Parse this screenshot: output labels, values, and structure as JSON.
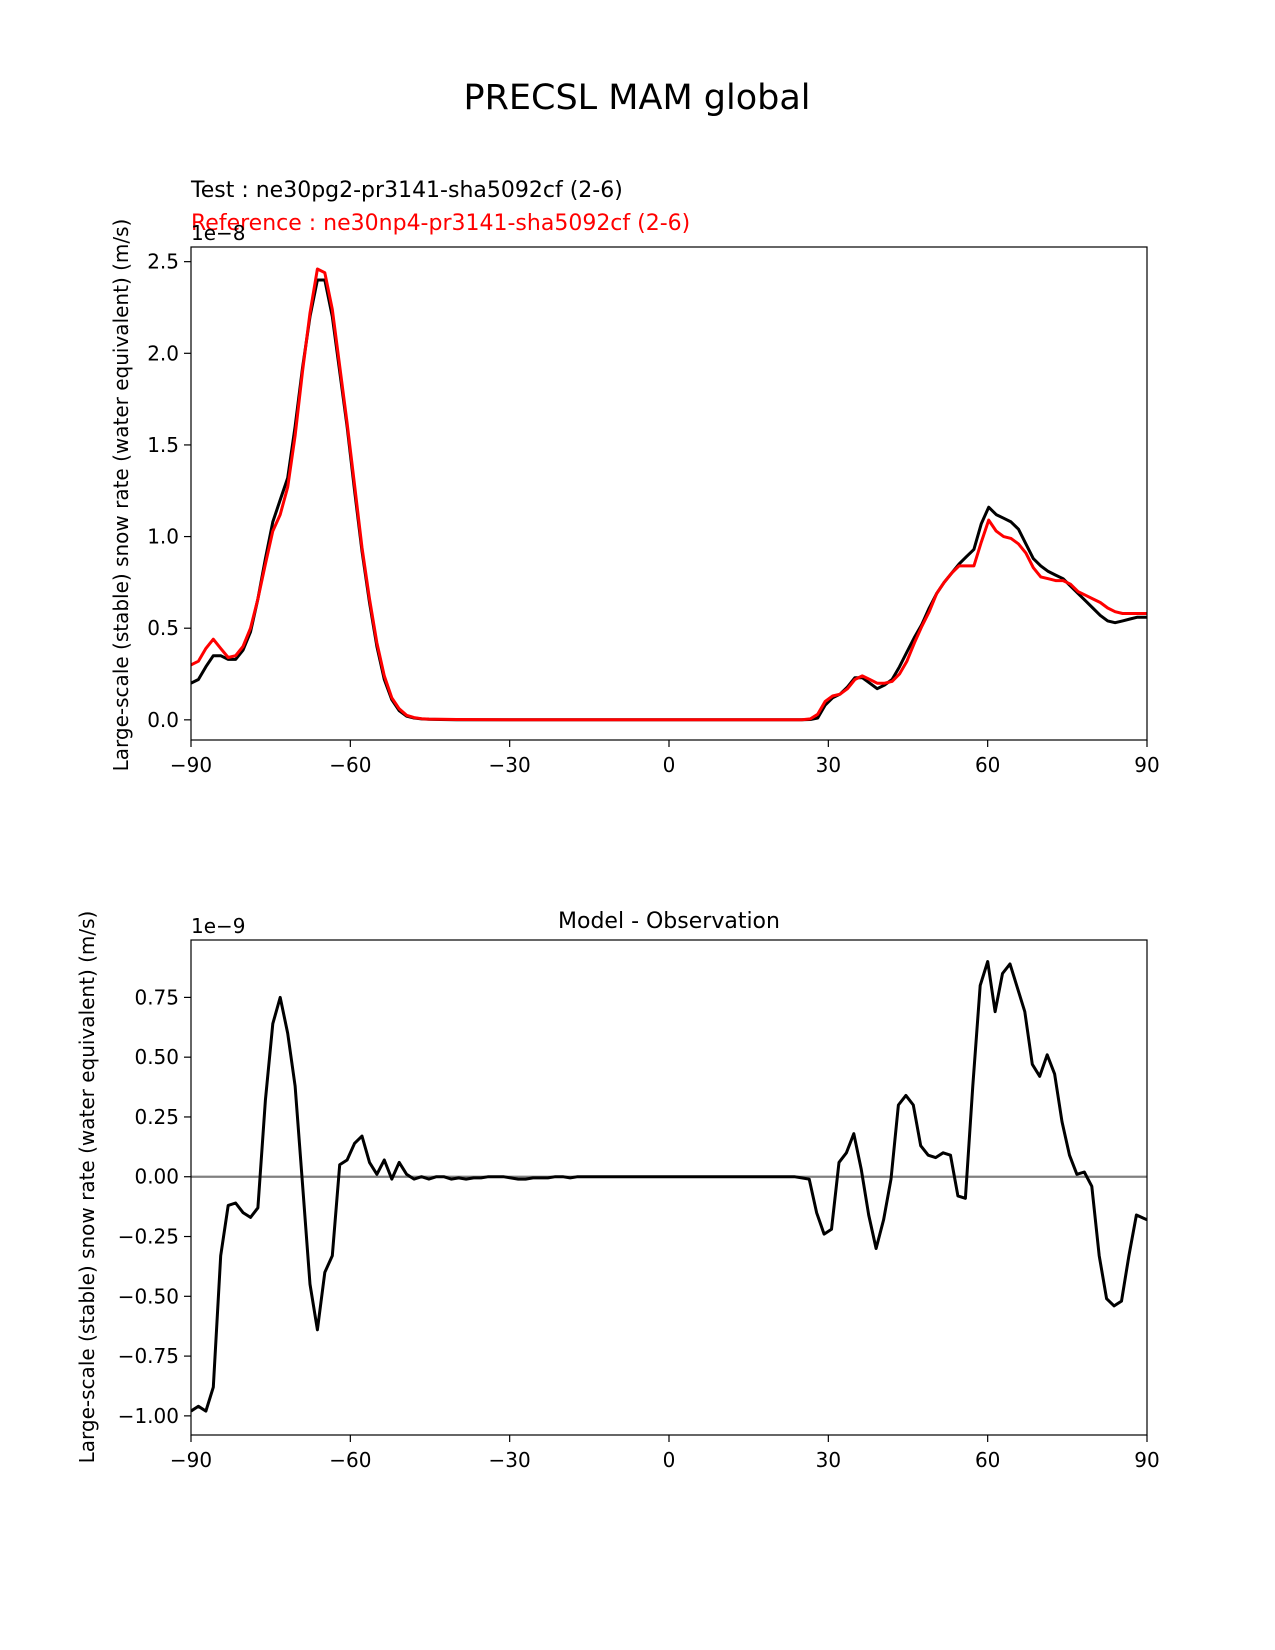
{
  "figure": {
    "suptitle": "PRECSL MAM global"
  },
  "chart_data": [
    {
      "type": "line",
      "title": "",
      "test_label": "Test : ne30pg2-pr3141-sha5092cf (2-6)",
      "reference_label": "Reference : ne30np4-pr3141-sha5092cf (2-6)",
      "ylabel": "Large-scale (stable) snow rate (water equivalent) (m/s)",
      "xlabel": "",
      "offset_text": "1e−8",
      "xlim": [
        -90,
        90
      ],
      "ylim": [
        -0.11,
        2.58
      ],
      "xticks": [
        -90,
        -60,
        -30,
        0,
        30,
        60,
        90
      ],
      "xtick_labels": [
        "−90",
        "−60",
        "−30",
        "0",
        "30",
        "60",
        "90"
      ],
      "yticks": [
        0.0,
        0.5,
        1.0,
        1.5,
        2.0,
        2.5
      ],
      "ytick_labels": [
        "0.0",
        "0.5",
        "1.0",
        "1.5",
        "2.0",
        "2.5"
      ],
      "grid": false,
      "series": [
        {
          "name": "Test : ne30pg2-pr3141-sha5092cf (2-6)",
          "color": "#000000",
          "x": [
            -90,
            -88.6,
            -87.2,
            -85.8,
            -84.4,
            -83.0,
            -81.6,
            -80.2,
            -78.8,
            -77.4,
            -76.0,
            -74.6,
            -73.2,
            -71.8,
            -70.4,
            -69.0,
            -67.6,
            -66.2,
            -64.8,
            -63.4,
            -62.0,
            -60.6,
            -59.2,
            -57.8,
            -56.4,
            -55.0,
            -53.6,
            -52.2,
            -50.8,
            -49.4,
            -48.0,
            -46.6,
            -45.2,
            -43.0,
            -40,
            -30,
            -20,
            -10,
            0,
            10,
            20,
            25,
            26.6,
            28.0,
            29.4,
            30.8,
            32.2,
            33.6,
            35.0,
            36.4,
            37.8,
            39.2,
            40.6,
            42.0,
            43.4,
            44.8,
            46.2,
            47.6,
            49.0,
            50.4,
            51.8,
            53.2,
            54.6,
            56.0,
            57.4,
            58.8,
            60.2,
            61.6,
            63.0,
            64.4,
            65.8,
            67.2,
            68.6,
            70.0,
            71.4,
            72.8,
            74.2,
            75.6,
            77.0,
            78.4,
            79.8,
            81.2,
            82.6,
            84.0,
            85.4,
            86.8,
            88.2,
            90
          ],
          "values": [
            0.2,
            0.22,
            0.29,
            0.35,
            0.35,
            0.33,
            0.33,
            0.38,
            0.48,
            0.66,
            0.88,
            1.08,
            1.2,
            1.32,
            1.6,
            1.92,
            2.2,
            2.4,
            2.4,
            2.2,
            1.9,
            1.6,
            1.25,
            0.92,
            0.64,
            0.4,
            0.22,
            0.11,
            0.05,
            0.02,
            0.01,
            0.005,
            0.003,
            0.002,
            0.001,
            0.0,
            0.0,
            0.0,
            0.0,
            0.0,
            0.0,
            0.0,
            0.002,
            0.01,
            0.08,
            0.12,
            0.14,
            0.18,
            0.23,
            0.23,
            0.2,
            0.17,
            0.19,
            0.22,
            0.29,
            0.37,
            0.45,
            0.52,
            0.61,
            0.69,
            0.75,
            0.8,
            0.85,
            0.89,
            0.93,
            1.07,
            1.16,
            1.12,
            1.1,
            1.08,
            1.04,
            0.96,
            0.88,
            0.84,
            0.81,
            0.79,
            0.77,
            0.73,
            0.69,
            0.65,
            0.61,
            0.57,
            0.54,
            0.53,
            0.54,
            0.55,
            0.56,
            0.56
          ]
        },
        {
          "name": "Reference : ne30np4-pr3141-sha5092cf (2-6)",
          "color": "#ff0000",
          "x": [
            -90,
            -88.6,
            -87.2,
            -85.8,
            -84.4,
            -83.0,
            -81.6,
            -80.2,
            -78.8,
            -77.4,
            -76.0,
            -74.6,
            -73.2,
            -71.8,
            -70.4,
            -69.0,
            -67.6,
            -66.2,
            -64.8,
            -63.4,
            -62.0,
            -60.6,
            -59.2,
            -57.8,
            -56.4,
            -55.0,
            -53.6,
            -52.2,
            -50.8,
            -49.4,
            -48.0,
            -46.6,
            -45.2,
            -43.0,
            -40,
            -30,
            -20,
            -10,
            0,
            10,
            20,
            25,
            26.6,
            28.0,
            29.4,
            30.8,
            32.2,
            33.6,
            35.0,
            36.4,
            37.8,
            39.2,
            40.6,
            42.0,
            43.4,
            44.8,
            46.2,
            47.6,
            49.0,
            50.4,
            51.8,
            53.2,
            54.6,
            56.0,
            57.4,
            58.8,
            60.2,
            61.6,
            63.0,
            64.4,
            65.8,
            67.2,
            68.6,
            70.0,
            71.4,
            72.8,
            74.2,
            75.6,
            77.0,
            78.4,
            79.8,
            81.2,
            82.6,
            84.0,
            85.4,
            86.8,
            88.2,
            90
          ],
          "values": [
            0.3,
            0.32,
            0.39,
            0.44,
            0.39,
            0.34,
            0.35,
            0.4,
            0.5,
            0.66,
            0.85,
            1.03,
            1.12,
            1.27,
            1.55,
            1.9,
            2.22,
            2.46,
            2.44,
            2.24,
            1.93,
            1.62,
            1.28,
            0.94,
            0.66,
            0.42,
            0.24,
            0.12,
            0.06,
            0.025,
            0.012,
            0.006,
            0.004,
            0.003,
            0.002,
            0.001,
            0.0,
            0.0,
            0.0,
            0.0,
            0.0,
            0.0,
            0.005,
            0.03,
            0.1,
            0.13,
            0.14,
            0.17,
            0.22,
            0.24,
            0.22,
            0.2,
            0.2,
            0.21,
            0.25,
            0.32,
            0.42,
            0.51,
            0.59,
            0.69,
            0.75,
            0.8,
            0.84,
            0.84,
            0.84,
            0.97,
            1.09,
            1.03,
            1.0,
            0.99,
            0.96,
            0.91,
            0.83,
            0.78,
            0.77,
            0.76,
            0.76,
            0.74,
            0.7,
            0.68,
            0.66,
            0.64,
            0.61,
            0.59,
            0.58,
            0.58,
            0.58,
            0.58
          ]
        }
      ]
    },
    {
      "type": "line",
      "title": "Model - Observation",
      "ylabel": "Large-scale (stable) snow rate (water equivalent) (m/s)",
      "xlabel": "",
      "offset_text": "1e−9",
      "xlim": [
        -90,
        90
      ],
      "ylim": [
        -1.08,
        0.99
      ],
      "xticks": [
        -90,
        -60,
        -30,
        0,
        30,
        60,
        90
      ],
      "xtick_labels": [
        "−90",
        "−60",
        "−30",
        "0",
        "30",
        "60",
        "90"
      ],
      "yticks": [
        0.75,
        0.5,
        0.25,
        0.0,
        -0.25,
        -0.5,
        -0.75,
        -1.0
      ],
      "ytick_labels": [
        "0.75",
        "0.50",
        "0.25",
        "0.00",
        "−0.25",
        "−0.50",
        "−0.75",
        "−1.00"
      ],
      "grid": false,
      "zero_line": {
        "value": 0.0,
        "color": "#808080"
      },
      "series": [
        {
          "color": "#000000",
          "x": [
            -90,
            -88.6,
            -87.2,
            -85.8,
            -84.4,
            -83.0,
            -81.6,
            -80.2,
            -78.8,
            -77.4,
            -76.0,
            -74.6,
            -73.2,
            -71.8,
            -70.4,
            -69.0,
            -67.6,
            -66.2,
            -64.8,
            -63.4,
            -62.0,
            -60.6,
            -59.2,
            -57.8,
            -56.4,
            -55.0,
            -53.6,
            -52.2,
            -50.8,
            -49.4,
            -48.0,
            -46.6,
            -45.2,
            -43.8,
            -42.4,
            -41.0,
            -39.6,
            -38.2,
            -36.8,
            -35.4,
            -34.0,
            -32.6,
            -31.2,
            -29.8,
            -28.4,
            -27.0,
            -25.6,
            -24.2,
            -22.8,
            -21.4,
            -20.0,
            -18.6,
            -17.2,
            -15.8,
            -14.4,
            -13.0,
            -10,
            0,
            10,
            20,
            23.6,
            25.0,
            26.4,
            27.8,
            29.2,
            30.6,
            32.0,
            33.4,
            34.8,
            36.2,
            37.6,
            39.0,
            40.4,
            41.8,
            43.2,
            44.6,
            46.0,
            47.4,
            48.8,
            50.2,
            51.6,
            53.0,
            54.4,
            55.8,
            57.2,
            58.6,
            60.0,
            61.4,
            62.8,
            64.2,
            65.6,
            67.0,
            68.4,
            69.8,
            71.2,
            72.6,
            74.0,
            75.4,
            76.8,
            78.2,
            79.6,
            81.0,
            82.4,
            83.8,
            85.2,
            86.6,
            88.0,
            90
          ],
          "values": [
            -0.98,
            -0.96,
            -0.98,
            -0.88,
            -0.33,
            -0.12,
            -0.11,
            -0.15,
            -0.17,
            -0.13,
            0.32,
            0.64,
            0.75,
            0.6,
            0.38,
            -0.03,
            -0.45,
            -0.64,
            -0.4,
            -0.33,
            0.05,
            0.07,
            0.14,
            0.17,
            0.06,
            0.01,
            0.07,
            -0.01,
            0.06,
            0.01,
            -0.01,
            0.0,
            -0.01,
            0.0,
            0.0,
            -0.01,
            -0.005,
            -0.01,
            -0.005,
            -0.005,
            0.0,
            0.0,
            0.0,
            -0.005,
            -0.01,
            -0.01,
            -0.005,
            -0.005,
            -0.005,
            0.0,
            0.0,
            -0.005,
            0.0,
            0.0,
            0.0,
            0.0,
            0.0,
            0.0,
            0.0,
            0.0,
            0.0,
            -0.005,
            -0.01,
            -0.15,
            -0.24,
            -0.22,
            0.06,
            0.1,
            0.18,
            0.03,
            -0.16,
            -0.3,
            -0.18,
            -0.01,
            0.3,
            0.34,
            0.3,
            0.13,
            0.09,
            0.08,
            0.1,
            0.09,
            -0.08,
            -0.09,
            0.38,
            0.8,
            0.9,
            0.69,
            0.85,
            0.89,
            0.79,
            0.69,
            0.47,
            0.42,
            0.51,
            0.43,
            0.23,
            0.09,
            0.01,
            0.02,
            -0.04,
            -0.33,
            -0.51,
            -0.54,
            -0.52,
            -0.33,
            -0.16,
            -0.18
          ]
        }
      ]
    }
  ]
}
